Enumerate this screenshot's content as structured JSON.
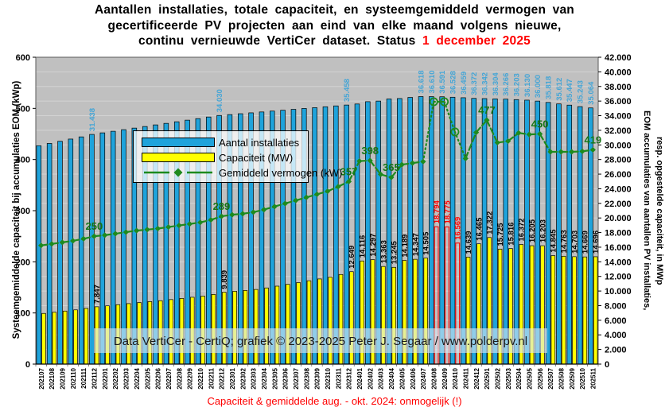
{
  "title": {
    "line1": "Aantallen installaties, totale capaciteit, en systeemgemiddeld vermogen van",
    "line2": "gecertificeerde PV projecten aan eind van elke maand volgens nieuwe,",
    "line3_prefix": "continu vernieuwde VertiCer dataset. Status ",
    "status_date": "1 december 2025"
  },
  "watermark": "Data VertiCer - CertiQ;  grafiek  © 2023-2025  Peter J. Segaar / www.polderpv.nl",
  "footnote": "Capaciteit & gemiddelde aug. - okt. 2024: onmogelijk (!)",
  "chart_data": {
    "type": "bar+line",
    "plot_bg": "#C0C0C0",
    "grid_color": "#D3D3D3",
    "label_blue": "#44A5D6",
    "label_green": "#157515",
    "impossible_color": "#FF0000",
    "left_axis": {
      "title": "Systeemgemiddelde capaciteit bij accumulaties EOM (kWp)",
      "min": 0,
      "max": 600,
      "step": 100
    },
    "right_axis": {
      "title_line1": "EOM accumulaties van aantallen PV installaties,",
      "title_line2": "resp. opgestelde capaciteit, in MWp",
      "min": 0,
      "max": 42000,
      "step": 2000
    },
    "categories": [
      "202107",
      "202108",
      "202109",
      "202110",
      "202111",
      "202112",
      "202201",
      "202202",
      "202203",
      "202204",
      "202205",
      "202206",
      "202207",
      "202208",
      "202209",
      "202210",
      "202211",
      "202212",
      "202301",
      "202302",
      "202303",
      "202304",
      "202305",
      "202306",
      "202307",
      "202308",
      "202309",
      "202310",
      "202311",
      "202312",
      "202401",
      "202402",
      "202403",
      "202404",
      "202405",
      "202406",
      "202407",
      "202408",
      "202409",
      "202410",
      "202411",
      "202412",
      "202501",
      "202502",
      "202503",
      "202504",
      "202505",
      "202506",
      "202507",
      "202508",
      "202509",
      "202510",
      "202511"
    ],
    "series": [
      {
        "name": "Aantal installaties",
        "type": "bar",
        "axis": "right",
        "color": "#1FA3DB",
        "values": [
          29900,
          30200,
          30500,
          30800,
          31100,
          31438,
          31650,
          31870,
          32090,
          32300,
          32520,
          32740,
          32950,
          33170,
          33390,
          33600,
          33820,
          34030,
          34150,
          34270,
          34390,
          34510,
          34630,
          34750,
          34870,
          34990,
          35100,
          35220,
          35340,
          35458,
          35600,
          35920,
          36000,
          36290,
          36350,
          36500,
          36618,
          36610,
          36591,
          36528,
          36459,
          36372,
          36342,
          36304,
          36266,
          36203,
          36130,
          36000,
          35818,
          35612,
          35447,
          35243,
          35064
        ],
        "labels": {
          "202112": "31.438",
          "202212": "34.030",
          "202312": "35.458",
          "202407": "36.618",
          "202408": "36.610",
          "202409": "36.591",
          "202410": "36.528",
          "202411": "36.459",
          "202412": "36.372",
          "202501": "36.342",
          "202502": "36.304",
          "202503": "36.266",
          "202504": "36.203",
          "202505": "36.130",
          "202506": "36.000",
          "202507": "35.818",
          "202508": "35.612",
          "202509": "35.447",
          "202510": "35.243",
          "202511": "35.064"
        }
      },
      {
        "name": "Capaciteit (MW)",
        "type": "bar",
        "axis": "right",
        "color": "#FFFF00",
        "values": [
          6937,
          7097,
          7259,
          7423,
          7620,
          7847,
          7976,
          8127,
          8279,
          8430,
          8553,
          8676,
          8831,
          8989,
          9149,
          9307,
          9537,
          9839,
          9972,
          10075,
          10214,
          10422,
          10666,
          10912,
          11158,
          11407,
          11653,
          11904,
          12263,
          12649,
          14116,
          14297,
          13363,
          13245,
          14189,
          14347,
          14505,
          18794,
          18775,
          16569,
          14639,
          16465,
          17322,
          15725,
          15816,
          16372,
          16205,
          16203,
          14845,
          14763,
          14703,
          14669,
          14696
        ],
        "labels": {
          "202112": "7.847",
          "202212": "9.839",
          "202312": "12.649",
          "202401": "14.116",
          "202402": "14.297",
          "202403": "13.363",
          "202404": "13.245",
          "202405": "14.189",
          "202406": "14.347",
          "202407": "14.505",
          "202408": "18.794",
          "202409": "18.775",
          "202410": "16.569",
          "202411": "14.639",
          "202412": "16.465",
          "202501": "17.322",
          "202502": "15.725",
          "202503": "15.816",
          "202504": "16.372",
          "202505": "16.205",
          "202506": "16.203",
          "202507": "14.845",
          "202508": "14.763",
          "202509": "14.703",
          "202510": "14.669",
          "202511": "14.696"
        },
        "impossible_months": [
          "202408",
          "202409",
          "202410"
        ]
      },
      {
        "name": "Gemiddeld vermogen (kW)",
        "type": "line",
        "axis": "left",
        "color": "#1E8A1E",
        "values": [
          232,
          235,
          238,
          241,
          245,
          250,
          252,
          255,
          258,
          261,
          263,
          265,
          268,
          271,
          274,
          277,
          282,
          289,
          292,
          294,
          297,
          302,
          308,
          314,
          320,
          326,
          332,
          338,
          347,
          357,
          397,
          398,
          371,
          365,
          390,
          393,
          396,
          513,
          513,
          454,
          402,
          453,
          477,
          433,
          436,
          452,
          449,
          450,
          415,
          415,
          415,
          416,
          419
        ],
        "labels": {
          "202112": "250",
          "202212": "289",
          "202312": "357",
          "202402": "398",
          "202404": "365",
          "202501": "477",
          "202506": "450",
          "202511": "419"
        },
        "impossible_months": [
          "202408",
          "202409",
          "202410"
        ]
      }
    ],
    "legend_position": "inside-left"
  }
}
